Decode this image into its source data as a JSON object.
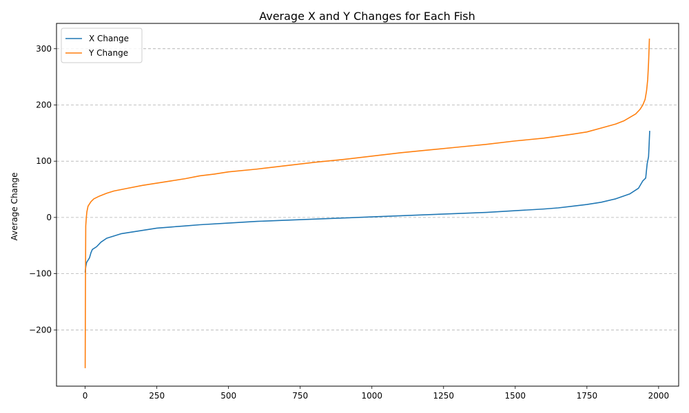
{
  "chart_data": {
    "type": "line",
    "title": "Average X and Y Changes for Each Fish",
    "xlabel": "",
    "ylabel": "Average Change",
    "xlim": [
      -100,
      2070
    ],
    "ylim": [
      -300,
      345
    ],
    "xticks": [
      0,
      250,
      500,
      750,
      1000,
      1250,
      1500,
      1750,
      2000
    ],
    "yticks": [
      -200,
      -100,
      0,
      100,
      200,
      300
    ],
    "grid": {
      "axis": "y",
      "style": "dashed"
    },
    "legend": {
      "position": "top-left"
    },
    "series": [
      {
        "name": "X Change",
        "color": "#1f77b4",
        "points": [
          [
            0,
            -98
          ],
          [
            2,
            -88
          ],
          [
            5,
            -80
          ],
          [
            10,
            -76
          ],
          [
            15,
            -72
          ],
          [
            20,
            -63
          ],
          [
            25,
            -57
          ],
          [
            40,
            -52
          ],
          [
            55,
            -44
          ],
          [
            75,
            -37
          ],
          [
            100,
            -33
          ],
          [
            125,
            -29
          ],
          [
            150,
            -27
          ],
          [
            175,
            -25
          ],
          [
            200,
            -23
          ],
          [
            250,
            -19
          ],
          [
            300,
            -17
          ],
          [
            350,
            -15
          ],
          [
            400,
            -13
          ],
          [
            500,
            -10
          ],
          [
            600,
            -7
          ],
          [
            700,
            -5
          ],
          [
            800,
            -3
          ],
          [
            900,
            -1
          ],
          [
            1000,
            1
          ],
          [
            1100,
            3
          ],
          [
            1200,
            5
          ],
          [
            1300,
            7
          ],
          [
            1400,
            9
          ],
          [
            1500,
            12
          ],
          [
            1600,
            15
          ],
          [
            1650,
            17
          ],
          [
            1700,
            20
          ],
          [
            1750,
            23
          ],
          [
            1800,
            27
          ],
          [
            1850,
            33
          ],
          [
            1900,
            42
          ],
          [
            1930,
            52
          ],
          [
            1945,
            65
          ],
          [
            1955,
            70
          ],
          [
            1960,
            95
          ],
          [
            1965,
            108
          ],
          [
            1967,
            130
          ],
          [
            1969,
            154
          ]
        ]
      },
      {
        "name": "Y Change",
        "color": "#ff7f0e",
        "points": [
          [
            0,
            -268
          ],
          [
            1,
            -120
          ],
          [
            2,
            -15
          ],
          [
            4,
            0
          ],
          [
            6,
            10
          ],
          [
            10,
            20
          ],
          [
            20,
            28
          ],
          [
            30,
            33
          ],
          [
            50,
            38
          ],
          [
            75,
            43
          ],
          [
            100,
            47
          ],
          [
            150,
            52
          ],
          [
            200,
            57
          ],
          [
            250,
            61
          ],
          [
            300,
            65
          ],
          [
            350,
            69
          ],
          [
            400,
            74
          ],
          [
            450,
            77
          ],
          [
            500,
            81
          ],
          [
            600,
            86
          ],
          [
            700,
            92
          ],
          [
            800,
            98
          ],
          [
            900,
            103
          ],
          [
            1000,
            109
          ],
          [
            1100,
            115
          ],
          [
            1200,
            120
          ],
          [
            1300,
            125
          ],
          [
            1400,
            130
          ],
          [
            1500,
            136
          ],
          [
            1600,
            141
          ],
          [
            1700,
            148
          ],
          [
            1750,
            152
          ],
          [
            1800,
            159
          ],
          [
            1850,
            166
          ],
          [
            1880,
            172
          ],
          [
            1900,
            178
          ],
          [
            1920,
            184
          ],
          [
            1935,
            192
          ],
          [
            1945,
            200
          ],
          [
            1953,
            210
          ],
          [
            1958,
            225
          ],
          [
            1962,
            245
          ],
          [
            1965,
            275
          ],
          [
            1968,
            318
          ]
        ]
      }
    ]
  }
}
